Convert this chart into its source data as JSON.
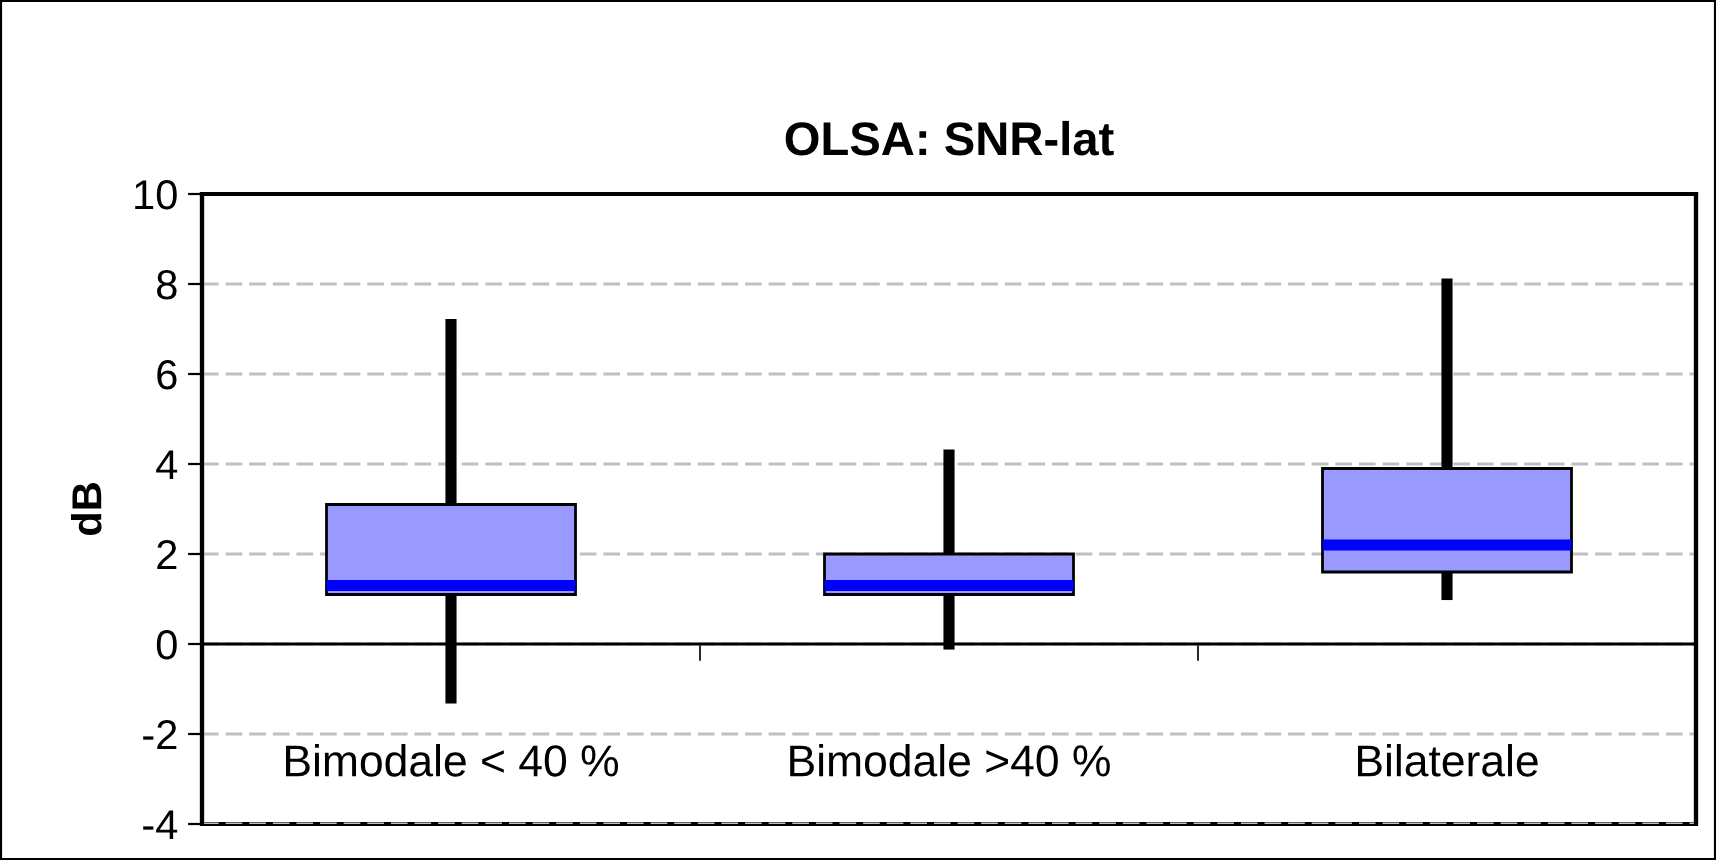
{
  "chart_data": {
    "type": "box",
    "title": "OLSA: SNR-lat",
    "ylabel": "dB",
    "categories": [
      "Bimodale < 40 %",
      "Bimodale >40 %",
      "Bilaterale"
    ],
    "series": [
      {
        "color": "#9999ff",
        "boxes": [
          {
            "low": -1.2,
            "q1": 1.1,
            "median": 1.3,
            "q3": 3.1,
            "high": 7.1
          },
          {
            "low": 0,
            "q1": 1.1,
            "median": 1.3,
            "q3": 2.0,
            "high": 4.2
          },
          {
            "low": 1.1,
            "q1": 1.6,
            "median": 2.2,
            "q3": 3.9,
            "high": 8.0
          }
        ]
      }
    ],
    "ylim": [
      -4,
      10
    ],
    "yticks": [
      -4,
      -2,
      0,
      2,
      4,
      6,
      8,
      10
    ],
    "grid": "y",
    "legend": false
  }
}
